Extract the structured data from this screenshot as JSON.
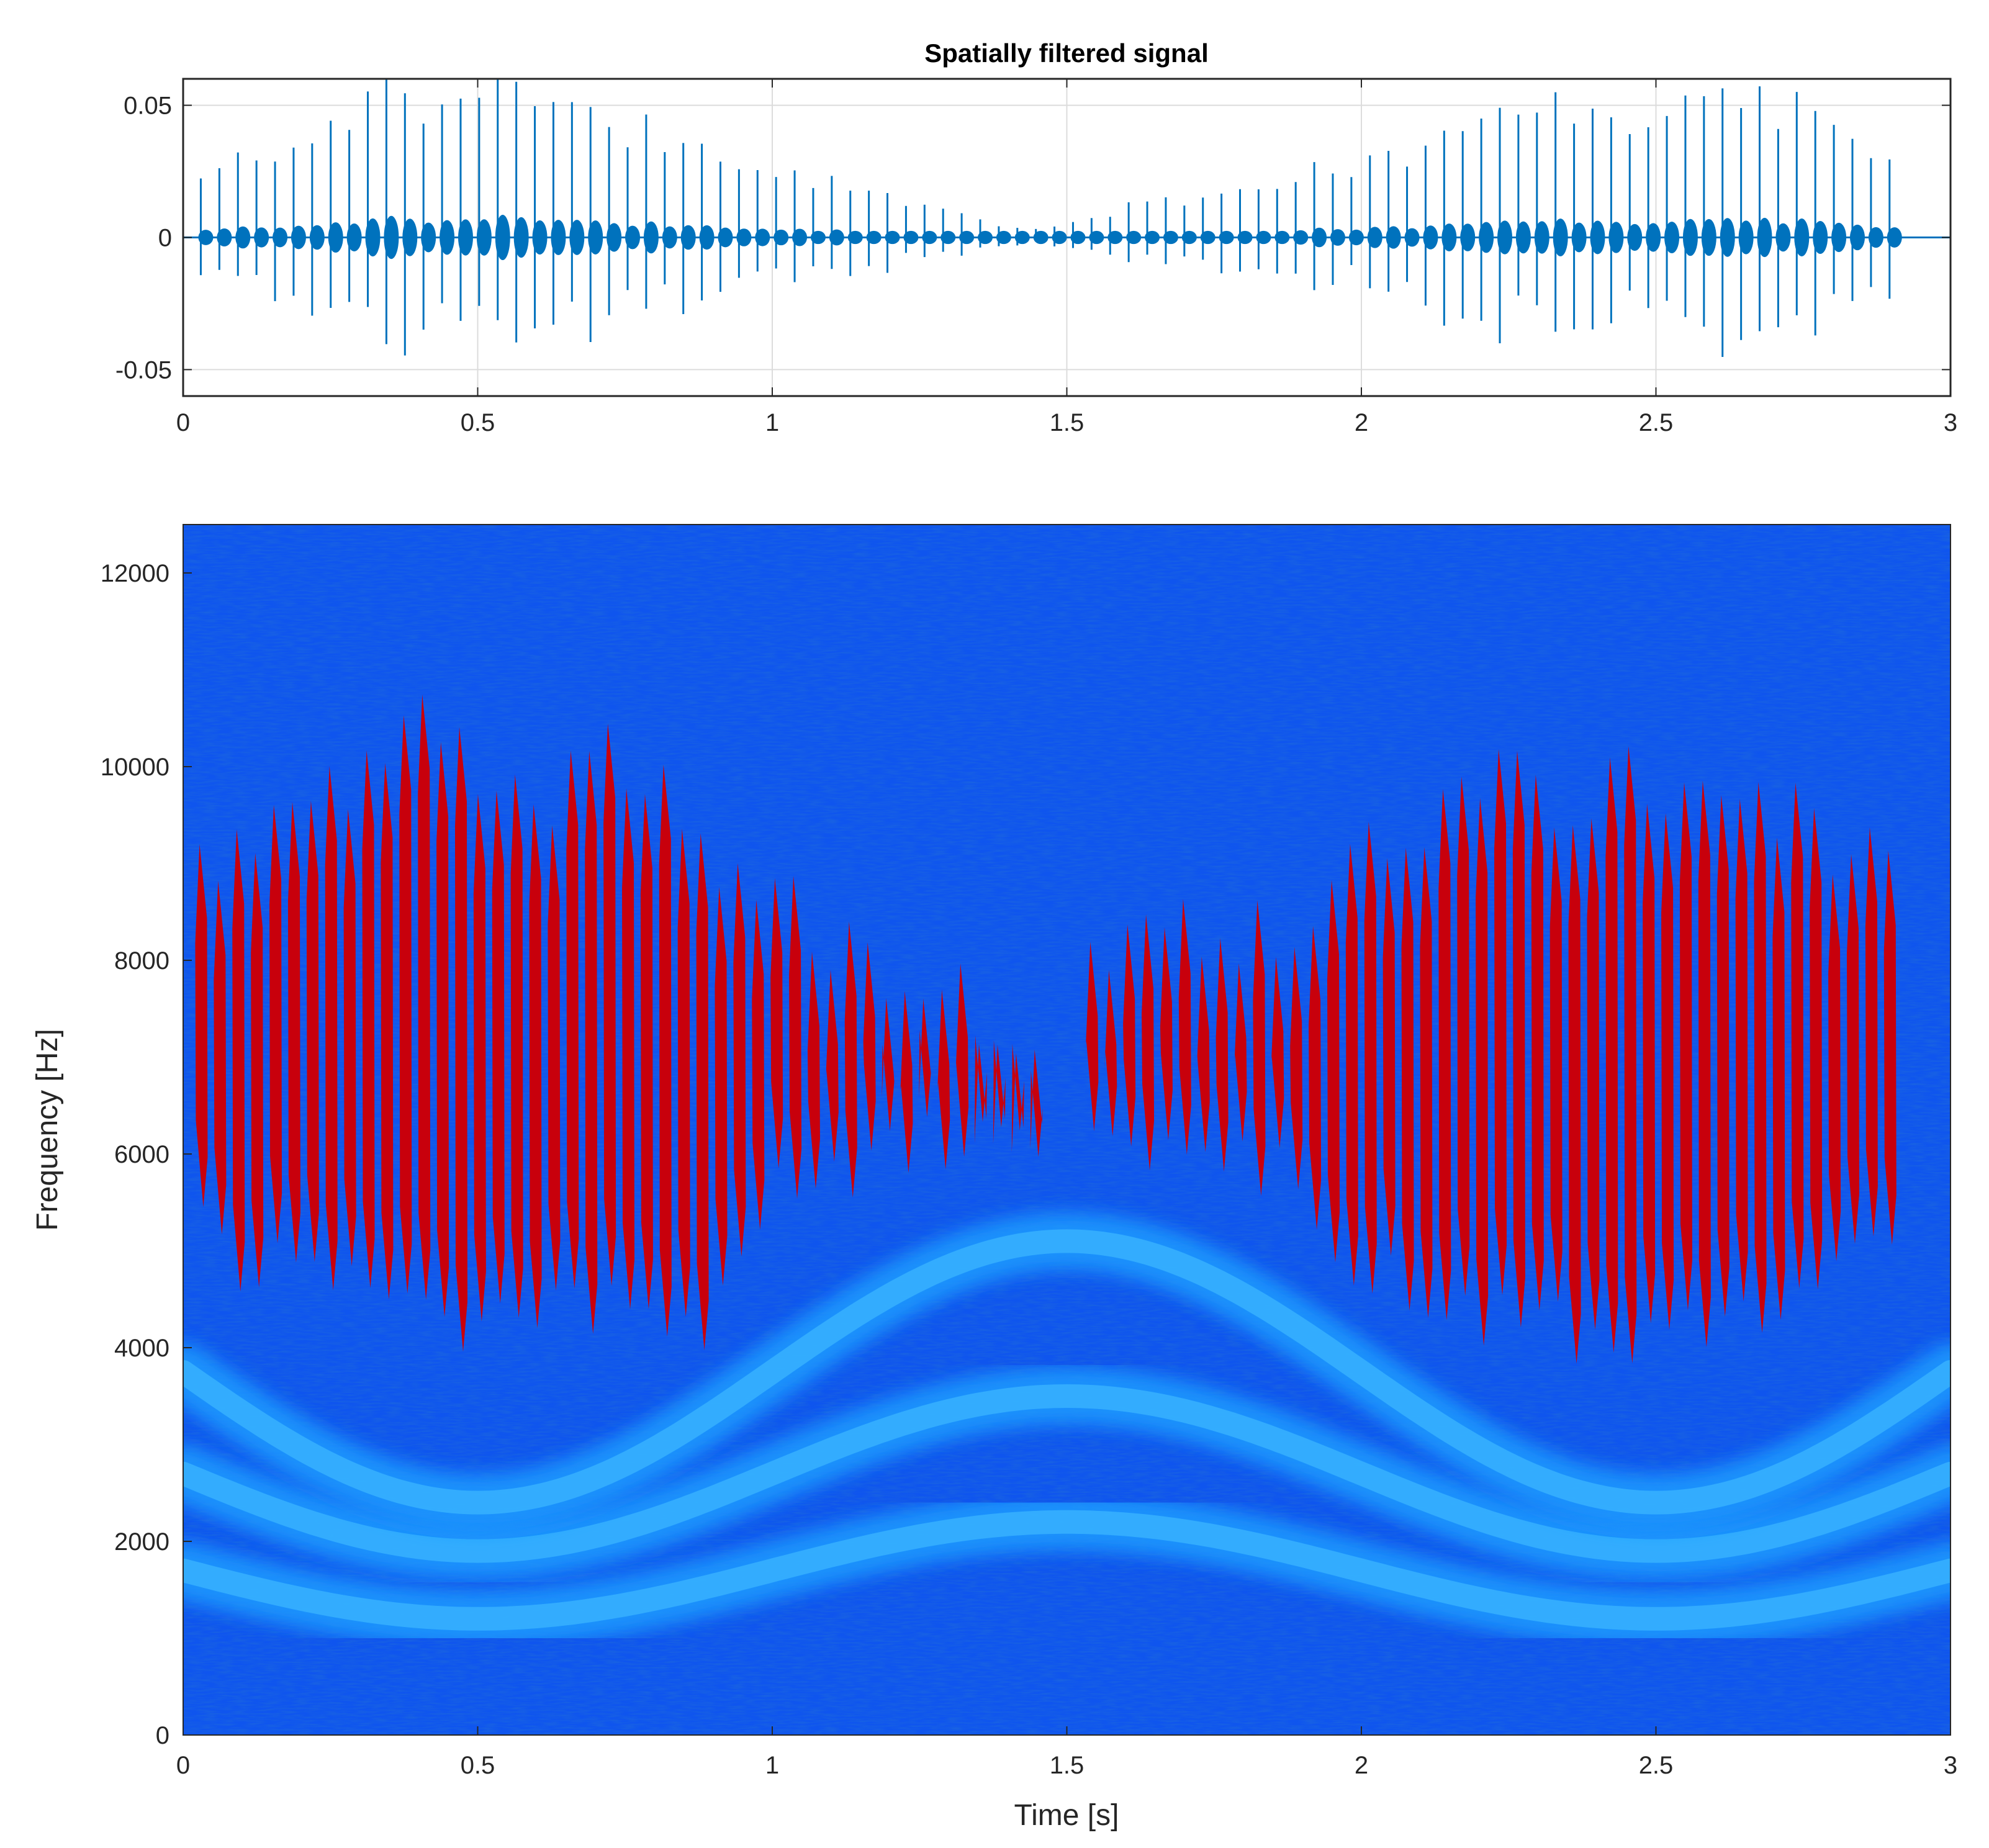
{
  "chart_data": [
    {
      "type": "line",
      "title": "Spatially filtered signal",
      "xlabel": "",
      "ylabel": "",
      "xlim": [
        0,
        3
      ],
      "ylim": [
        -0.06,
        0.06
      ],
      "grid": true,
      "x_ticks": [
        0,
        0.5,
        1,
        1.5,
        2,
        2.5,
        3
      ],
      "x_tick_labels": [
        "0",
        "0.5",
        "1",
        "1.5",
        "2",
        "2.5",
        "3"
      ],
      "y_ticks": [
        0.05,
        0,
        -0.05
      ],
      "y_tick_labels": [
        "0.05",
        "0",
        "-0.05"
      ],
      "series": [
        {
          "name": "signal",
          "color": "#0072BD",
          "pulse_interval_s": 0.0315,
          "pulse_start_s": 0.03,
          "pulse_end_s": 2.9,
          "envelope_t": [
            0.0,
            0.1,
            0.25,
            0.33,
            0.42,
            0.5,
            0.65,
            0.75,
            0.9,
            1.0,
            1.15,
            1.3,
            1.4,
            1.45,
            1.5,
            1.6,
            1.75,
            1.9,
            2.0,
            2.15,
            2.3,
            2.45,
            2.55,
            2.65,
            2.75,
            2.9
          ],
          "envelope_amp": [
            0.025,
            0.033,
            0.045,
            0.06,
            0.05,
            0.065,
            0.05,
            0.045,
            0.035,
            0.03,
            0.018,
            0.01,
            0.004,
            0.003,
            0.006,
            0.012,
            0.018,
            0.026,
            0.03,
            0.038,
            0.05,
            0.05,
            0.05,
            0.055,
            0.05,
            0.035
          ]
        }
      ]
    },
    {
      "type": "heatmap",
      "title": "",
      "xlabel": "Time [s]",
      "ylabel": "Frequency [Hz]",
      "xlim": [
        0,
        3
      ],
      "ylim": [
        0,
        12500
      ],
      "x_ticks": [
        0,
        0.5,
        1,
        1.5,
        2,
        2.5,
        3
      ],
      "x_tick_labels": [
        "0",
        "0.5",
        "1",
        "1.5",
        "2",
        "2.5",
        "3"
      ],
      "y_ticks": [
        0,
        2000,
        4000,
        6000,
        8000,
        10000,
        12000
      ],
      "y_tick_labels": [
        "0",
        "2000",
        "4000",
        "6000",
        "8000",
        "10000",
        "12000"
      ],
      "colors": {
        "background": "#0f55ee",
        "harmonic_band": "#1f9bff",
        "harmonic_core": "#3cb6ff",
        "click": "#c8000c"
      },
      "harmonics": [
        {
          "name": "band-1",
          "min_hz": 1200,
          "max_hz": 2200,
          "period_s": 2.0,
          "peak_t_s": 1.5
        },
        {
          "name": "band-2",
          "min_hz": 1900,
          "max_hz": 3500,
          "period_s": 2.0,
          "peak_t_s": 1.5
        },
        {
          "name": "band-3",
          "min_hz": 2400,
          "max_hz": 5100,
          "period_s": 2.0,
          "peak_t_s": 1.5
        }
      ],
      "clicks": {
        "interval_s": 0.0315,
        "start_s": 0.03,
        "end_s": 2.9,
        "gap_s": [
          1.46,
          1.53
        ],
        "envelope_t": [
          0.0,
          0.2,
          0.3,
          0.42,
          0.5,
          0.6,
          0.75,
          0.9,
          1.0,
          1.15,
          1.3,
          1.4,
          1.5,
          1.6,
          1.75,
          1.9,
          2.0,
          2.15,
          2.3,
          2.45,
          2.6,
          2.75,
          2.9
        ],
        "envelope_top_hz": [
          8800,
          9600,
          10100,
          10400,
          10000,
          9700,
          10200,
          8900,
          8600,
          8100,
          7700,
          7200,
          7600,
          8000,
          8300,
          8500,
          9100,
          9800,
          9800,
          9900,
          9800,
          9500,
          9000
        ],
        "envelope_bottom_hz": [
          5200,
          4600,
          4500,
          4300,
          4100,
          4500,
          4400,
          4200,
          5500,
          5900,
          6100,
          6300,
          6200,
          6100,
          6000,
          5700,
          4700,
          4400,
          4300,
          4000,
          4400,
          4500,
          5300
        ]
      }
    }
  ]
}
